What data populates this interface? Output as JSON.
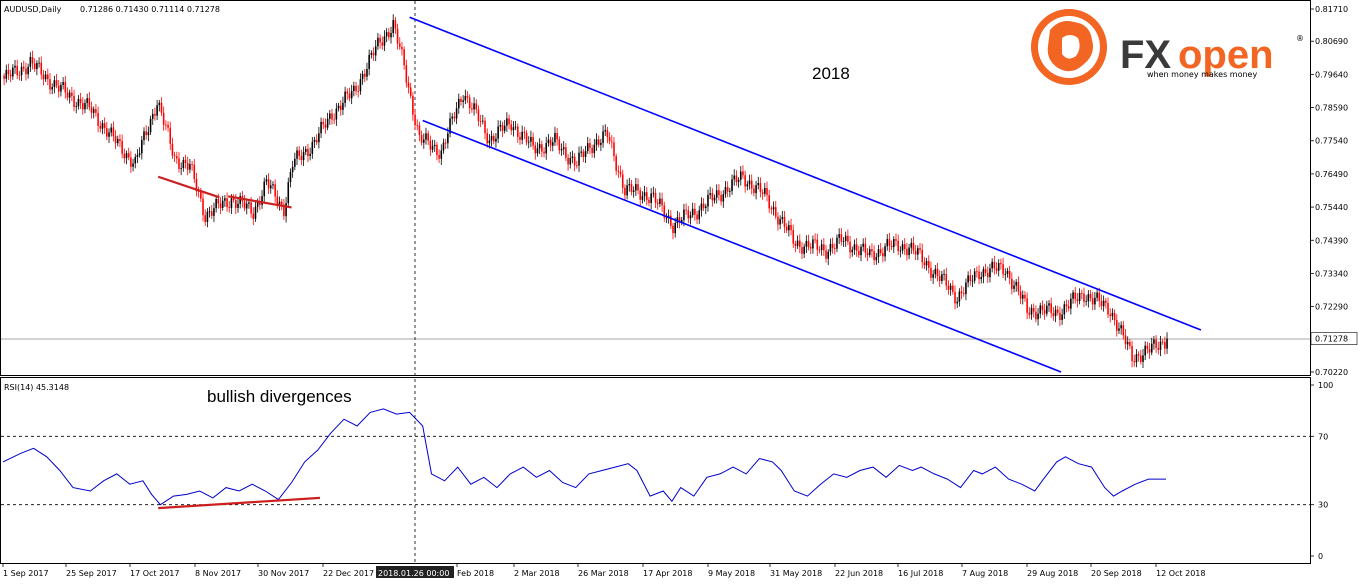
{
  "header": {
    "symbol_label": "AUDUSD,Daily",
    "ohlc": "0.71286 0.71430 0.71114 0.71278"
  },
  "rsi_header": "RSI(14) 45.3148",
  "annotations": {
    "year": "2018",
    "divergence": "bullish divergences"
  },
  "logo": {
    "fx": "FX",
    "open": "open",
    "registered": "®",
    "tagline": "when money makes money"
  },
  "crosshair_label": "2018.01.26 00:00",
  "colors": {
    "bull": "#000000",
    "bear": "#ff0000",
    "channel": "#0000ff",
    "divergence": "#cc1f1f",
    "rsi": "#0000cc",
    "brand_orange": "#f26522",
    "brand_dark": "#3a3a3a"
  },
  "chart_data": [
    {
      "type": "candlestick",
      "title": "AUDUSD,Daily",
      "ylim": [
        0.7022,
        0.8171
      ],
      "y_ticks": [
        "0.81710",
        "0.80690",
        "0.79640",
        "0.78590",
        "0.77540",
        "0.76490",
        "0.75440",
        "0.74390",
        "0.73340",
        "0.72290",
        "0.71278",
        "0.70220"
      ],
      "current_price": "0.71278",
      "x_ticks": [
        "1 Sep 2017",
        "25 Sep 2017",
        "17 Oct 2017",
        "8 Nov 2017",
        "30 Nov 2017",
        "22 Dec 2017",
        "2018.01.26 00:00",
        "Feb 2018",
        "2 Mar 2018",
        "26 Mar 2018",
        "17 Apr 2018",
        "9 May 2018",
        "31 May 2018",
        "22 Jun 2018",
        "16 Jul 2018",
        "7 Aug 2018",
        "29 Aug 2018",
        "20 Sep 2018",
        "12 Oct 2018"
      ],
      "close_path": [
        [
          0,
          0.795
        ],
        [
          12,
          0.8
        ],
        [
          25,
          0.792
        ],
        [
          40,
          0.785
        ],
        [
          50,
          0.776
        ],
        [
          60,
          0.768
        ],
        [
          70,
          0.788
        ],
        [
          78,
          0.77
        ],
        [
          85,
          0.767
        ],
        [
          92,
          0.752
        ],
        [
          104,
          0.757
        ],
        [
          114,
          0.753
        ],
        [
          120,
          0.762
        ],
        [
          128,
          0.754
        ],
        [
          132,
          0.768
        ],
        [
          142,
          0.775
        ],
        [
          150,
          0.784
        ],
        [
          160,
          0.791
        ],
        [
          172,
          0.807
        ],
        [
          178,
          0.812
        ],
        [
          183,
          0.799
        ],
        [
          190,
          0.776
        ],
        [
          200,
          0.772
        ],
        [
          210,
          0.791
        ],
        [
          222,
          0.776
        ],
        [
          232,
          0.781
        ],
        [
          242,
          0.773
        ],
        [
          252,
          0.775
        ],
        [
          262,
          0.768
        ],
        [
          268,
          0.774
        ],
        [
          276,
          0.777
        ],
        [
          284,
          0.76
        ],
        [
          296,
          0.758
        ],
        [
          306,
          0.749
        ],
        [
          316,
          0.753
        ],
        [
          326,
          0.758
        ],
        [
          338,
          0.764
        ],
        [
          348,
          0.758
        ],
        [
          362,
          0.743
        ],
        [
          376,
          0.741
        ],
        [
          384,
          0.744
        ],
        [
          396,
          0.739
        ],
        [
          404,
          0.742
        ],
        [
          414,
          0.742
        ],
        [
          424,
          0.735
        ],
        [
          436,
          0.726
        ],
        [
          446,
          0.734
        ],
        [
          458,
          0.735
        ],
        [
          468,
          0.722
        ],
        [
          482,
          0.721
        ],
        [
          494,
          0.727
        ],
        [
          506,
          0.722
        ],
        [
          516,
          0.707
        ],
        [
          524,
          0.709
        ],
        [
          532,
          0.7128
        ]
      ],
      "channel": {
        "upper": [
          [
            186,
            0.8145
          ],
          [
            548,
            0.7155
          ]
        ],
        "lower": [
          [
            192,
            0.7818
          ],
          [
            484,
            0.7022
          ]
        ]
      },
      "divergence_lines": [
        [
          [
            71,
            0.764
          ],
          [
            99,
            0.7575
          ]
        ],
        [
          [
            103,
            0.7578
          ],
          [
            132,
            0.7543
          ]
        ]
      ]
    },
    {
      "type": "line",
      "title": "RSI(14) 45.3148",
      "ylim": [
        0,
        100
      ],
      "y_ticks": [
        100,
        70,
        30,
        0
      ],
      "levels": [
        70,
        30
      ],
      "series": [
        {
          "values": [
            [
              0,
              55
            ],
            [
              8,
              60
            ],
            [
              14,
              63
            ],
            [
              20,
              58
            ],
            [
              26,
              50
            ],
            [
              32,
              40
            ],
            [
              40,
              38
            ],
            [
              46,
              44
            ],
            [
              52,
              48
            ],
            [
              58,
              42
            ],
            [
              64,
              44
            ],
            [
              68,
              36
            ],
            [
              72,
              30
            ],
            [
              78,
              35
            ],
            [
              84,
              36
            ],
            [
              90,
              38
            ],
            [
              96,
              34
            ],
            [
              102,
              40
            ],
            [
              108,
              38
            ],
            [
              114,
              42
            ],
            [
              120,
              38
            ],
            [
              126,
              33
            ],
            [
              132,
              43
            ],
            [
              138,
              55
            ],
            [
              144,
              62
            ],
            [
              150,
              72
            ],
            [
              156,
              80
            ],
            [
              162,
              76
            ],
            [
              168,
              84
            ],
            [
              174,
              86
            ],
            [
              180,
              83
            ],
            [
              186,
              84
            ],
            [
              192,
              76
            ],
            [
              196,
              48
            ],
            [
              202,
              44
            ],
            [
              208,
              52
            ],
            [
              214,
              42
            ],
            [
              220,
              46
            ],
            [
              226,
              40
            ],
            [
              232,
              48
            ],
            [
              238,
              52
            ],
            [
              244,
              46
            ],
            [
              250,
              50
            ],
            [
              256,
              43
            ],
            [
              262,
              40
            ],
            [
              268,
              48
            ],
            [
              274,
              50
            ],
            [
              280,
              52
            ],
            [
              286,
              54
            ],
            [
              290,
              50
            ],
            [
              296,
              35
            ],
            [
              302,
              38
            ],
            [
              306,
              32
            ],
            [
              310,
              40
            ],
            [
              316,
              35
            ],
            [
              322,
              46
            ],
            [
              328,
              48
            ],
            [
              334,
              52
            ],
            [
              340,
              48
            ],
            [
              346,
              57
            ],
            [
              352,
              55
            ],
            [
              356,
              50
            ],
            [
              362,
              38
            ],
            [
              368,
              35
            ],
            [
              374,
              42
            ],
            [
              380,
              48
            ],
            [
              386,
              46
            ],
            [
              392,
              50
            ],
            [
              398,
              52
            ],
            [
              404,
              46
            ],
            [
              410,
              53
            ],
            [
              416,
              50
            ],
            [
              420,
              52
            ],
            [
              426,
              48
            ],
            [
              432,
              45
            ],
            [
              438,
              40
            ],
            [
              444,
              50
            ],
            [
              448,
              48
            ],
            [
              454,
              52
            ],
            [
              460,
              45
            ],
            [
              466,
              42
            ],
            [
              472,
              38
            ],
            [
              476,
              45
            ],
            [
              482,
              55
            ],
            [
              486,
              58
            ],
            [
              492,
              54
            ],
            [
              498,
              52
            ],
            [
              504,
              40
            ],
            [
              508,
              35
            ],
            [
              512,
              38
            ],
            [
              518,
              42
            ],
            [
              524,
              45
            ],
            [
              532,
              45
            ]
          ]
        }
      ],
      "divergence_line": [
        [
          71,
          28
        ],
        [
          145,
          34
        ]
      ]
    }
  ]
}
